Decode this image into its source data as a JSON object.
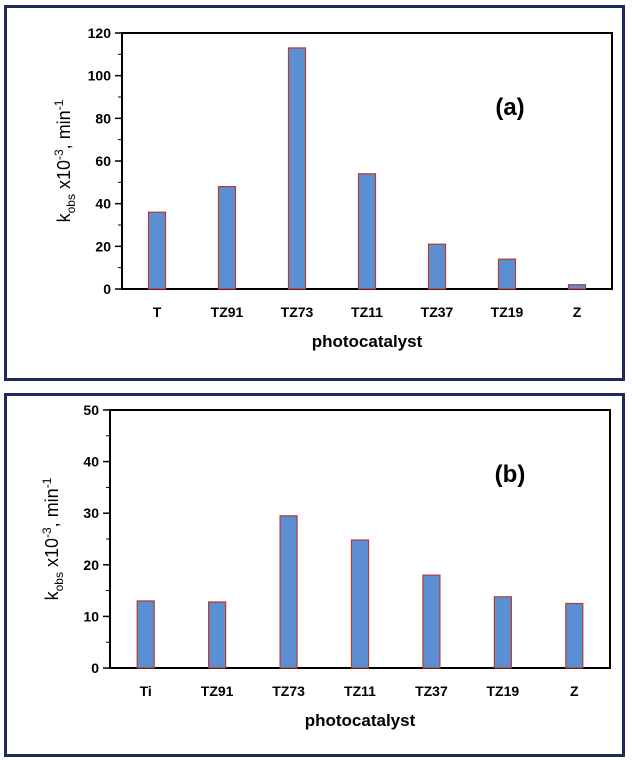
{
  "chart_data": [
    {
      "type": "bar",
      "panel_label": "(a)",
      "categories": [
        "T",
        "TZ91",
        "TZ73",
        "TZ11",
        "TZ37",
        "TZ19",
        "Z"
      ],
      "values": [
        36,
        48,
        113,
        54,
        21,
        14,
        2
      ],
      "xlabel": "photocatalyst",
      "ylabel": {
        "k": "k",
        "sub": "obs",
        "times": " x10",
        "exp": "-3",
        "unit": ", min",
        "unit_exp": "-1"
      },
      "ylim": [
        0,
        120
      ],
      "yticks": [
        0,
        20,
        40,
        60,
        80,
        100,
        120
      ],
      "grid": false,
      "bar_color": "#5b8fd4",
      "bar_edge": "#b83a2e"
    },
    {
      "type": "bar",
      "panel_label": "(b)",
      "categories": [
        "Ti",
        "TZ91",
        "TZ73",
        "TZ11",
        "TZ37",
        "TZ19",
        "Z"
      ],
      "values": [
        13,
        12.8,
        29.5,
        24.8,
        18,
        13.8,
        12.5
      ],
      "xlabel": "photocatalyst",
      "ylabel": {
        "k": "k",
        "sub": "obs",
        "times": " x10",
        "exp": "-3",
        "unit": ", min",
        "unit_exp": "-1"
      },
      "ylim": [
        0,
        50
      ],
      "yticks": [
        0,
        10,
        20,
        30,
        40,
        50
      ],
      "grid": false,
      "bar_color": "#5b8fd4",
      "bar_edge": "#b83a2e"
    }
  ]
}
